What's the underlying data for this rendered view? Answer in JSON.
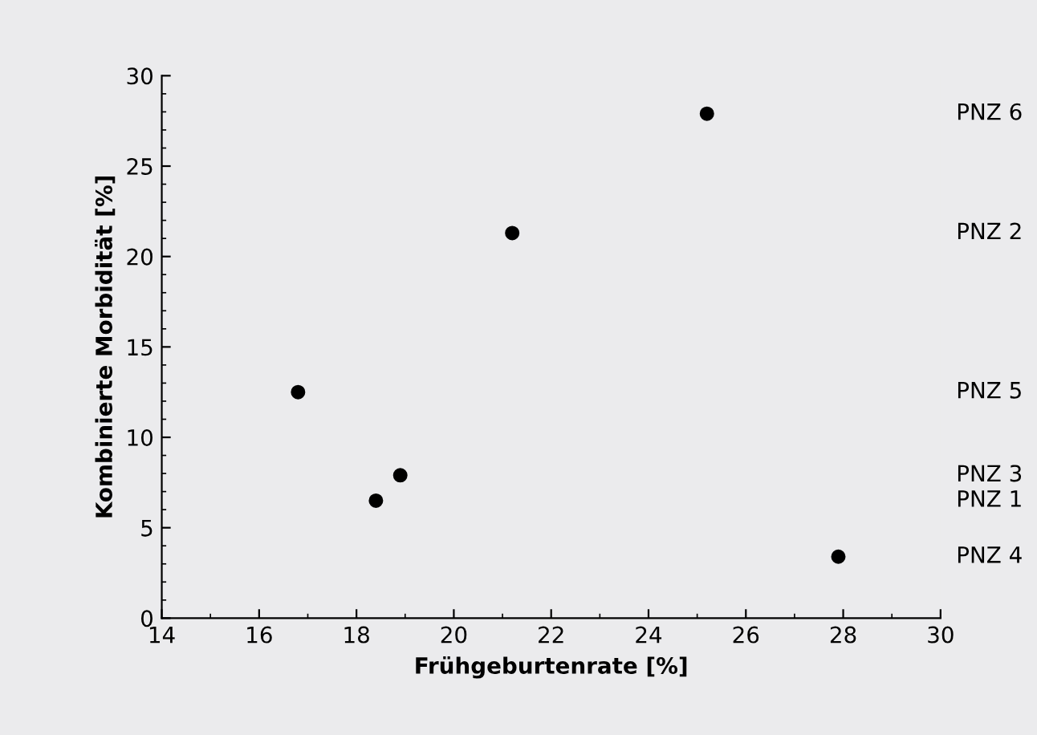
{
  "chart_data": {
    "type": "scatter",
    "xlabel": "Frühgeburtenrate [%]",
    "ylabel": "Kombinierte Morbidität [%]",
    "x": [
      16.8,
      18.4,
      18.9,
      27.9,
      21.2,
      25.2
    ],
    "values": [
      12.5,
      6.5,
      7.9,
      3.4,
      21.3,
      27.9
    ],
    "color": "#000000",
    "marker": "circle",
    "annotations": [
      "PNZ 5",
      "PNZ 1",
      "PNZ 3",
      "PNZ 4",
      "PNZ 2",
      "PNZ 6"
    ],
    "xlim": [
      14,
      30
    ],
    "xticks": [
      14,
      16,
      18,
      20,
      22,
      24,
      26,
      28,
      30
    ],
    "ylim": [
      0,
      30
    ],
    "yticks": [
      0,
      5,
      10,
      15,
      20,
      25,
      30
    ],
    "grid": false,
    "legend": false
  }
}
